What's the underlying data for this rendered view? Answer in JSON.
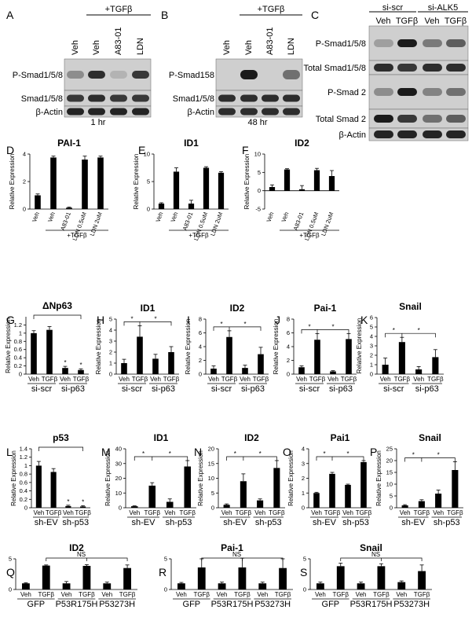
{
  "panels": {
    "A": {
      "label": "A",
      "treatment": "+TGFβ",
      "lanes": [
        "Veh",
        "Veh",
        "A83-01",
        "LDN"
      ],
      "rows": [
        "P-Smad1/5/8",
        "Smad1/5/8",
        "β-Actin"
      ],
      "time": "1 hr"
    },
    "B": {
      "label": "B",
      "treatment": "+TGFβ",
      "lanes": [
        "Veh",
        "Veh",
        "A83-01",
        "LDN"
      ],
      "rows": [
        "P-Smad158",
        "Smad1/5/8",
        "β-Actin"
      ],
      "time": "48 hr"
    },
    "C": {
      "label": "C",
      "groups": [
        "si-scr",
        "si-ALK5"
      ],
      "lanes": [
        "Veh",
        "TGFβ",
        "Veh",
        "TGFβ"
      ],
      "rows": [
        "P-Smad1/5/8",
        "Total Smad1/5/8",
        "P-Smad 2",
        "Total Smad 2",
        "β-Actin"
      ]
    }
  },
  "chart_data": [
    {
      "id": "D",
      "type": "bar",
      "title": "PAI-1",
      "ylabel": "Relative Expression",
      "categories": [
        "Veh",
        "Veh",
        "A83-01",
        "LDN 0.5uM",
        "LDN 2uM"
      ],
      "bracket_label": "+TGFβ",
      "ylim": [
        0,
        4
      ],
      "yticks": [
        0,
        2,
        4
      ],
      "values": [
        1.0,
        3.75,
        0.1,
        3.6,
        3.75
      ],
      "errors": [
        0.1,
        0.1,
        0.05,
        0.25,
        0.1
      ]
    },
    {
      "id": "E",
      "type": "bar",
      "title": "ID1",
      "ylabel": "Relative Expression",
      "categories": [
        "Veh",
        "Veh",
        "A83-01",
        "LDN 0.5uM",
        "LDN 2uM"
      ],
      "bracket_label": "+TGFβ",
      "ylim": [
        0,
        10
      ],
      "yticks": [
        0,
        5,
        10
      ],
      "values": [
        1.0,
        6.8,
        1.0,
        7.5,
        6.6
      ],
      "errors": [
        0.15,
        0.7,
        0.6,
        0.2,
        0.2
      ]
    },
    {
      "id": "F",
      "type": "bar",
      "title": "ID2",
      "ylabel": "Relative Expression",
      "categories": [
        "Veh",
        "Veh",
        "A83-01",
        "LDN 0.5uM",
        "LDN 2uM"
      ],
      "bracket_label": "+TGFβ",
      "ylim": [
        -5,
        10
      ],
      "yticks": [
        -5,
        0,
        5,
        10
      ],
      "values": [
        1.0,
        5.8,
        0.4,
        5.6,
        4.0
      ],
      "errors": [
        0.6,
        0.2,
        1.0,
        0.5,
        1.5
      ]
    },
    {
      "id": "G",
      "type": "bar",
      "title": "ΔNp63",
      "ylabel": "Relative Expression",
      "categories": [
        "Veh",
        "TGFβ",
        "Veh",
        "TGFβ"
      ],
      "groups": [
        "si-scr",
        "si-p63"
      ],
      "ylim": [
        0,
        1.4
      ],
      "yticks": [
        0,
        0.2,
        0.4,
        0.6,
        0.8,
        1,
        1.2
      ],
      "values": [
        1.0,
        1.08,
        0.15,
        0.1
      ],
      "errors": [
        0.06,
        0.08,
        0.04,
        0.03
      ],
      "stars": [
        "",
        "",
        "*",
        "*"
      ]
    },
    {
      "id": "H",
      "type": "bar",
      "title": "ID1",
      "ylabel": "Relative Expression",
      "categories": [
        "Veh",
        "TGFβ",
        "Veh",
        "TGFβ"
      ],
      "groups": [
        "si-scr",
        "si-p63"
      ],
      "ylim": [
        0,
        5
      ],
      "yticks": [
        0,
        1,
        2,
        3,
        4,
        5
      ],
      "values": [
        1.0,
        3.4,
        1.4,
        2.0
      ],
      "errors": [
        0.35,
        1.0,
        0.4,
        0.5
      ]
    },
    {
      "id": "I",
      "type": "bar",
      "title": "ID2",
      "ylabel": "Relative Expression",
      "categories": [
        "Veh",
        "TGFβ",
        "Veh",
        "TGFβ"
      ],
      "groups": [
        "si-scr",
        "si-p63"
      ],
      "ylim": [
        0,
        8
      ],
      "yticks": [
        0,
        2,
        4,
        6,
        8
      ],
      "values": [
        0.8,
        5.4,
        0.9,
        2.9
      ],
      "errors": [
        0.4,
        0.9,
        0.4,
        1.0
      ]
    },
    {
      "id": "J",
      "type": "bar",
      "title": "Pai-1",
      "ylabel": "Relative Expression",
      "categories": [
        "Veh",
        "TGFβ",
        "Veh",
        "TGFβ"
      ],
      "groups": [
        "si-scr",
        "si-p63"
      ],
      "ylim": [
        0,
        8
      ],
      "yticks": [
        0,
        2,
        4,
        6,
        8
      ],
      "values": [
        1.0,
        5.0,
        0.4,
        5.1
      ],
      "errors": [
        0.2,
        0.9,
        0.1,
        0.8
      ]
    },
    {
      "id": "K",
      "type": "bar",
      "title": "Snail",
      "ylabel": "Relative Expression",
      "categories": [
        "Veh",
        "TGFβ",
        "Veh",
        "TGFβ"
      ],
      "groups": [
        "si-scr",
        "si-p63"
      ],
      "ylim": [
        0,
        6
      ],
      "yticks": [
        0,
        1,
        2,
        3,
        4,
        5,
        6
      ],
      "values": [
        1.0,
        3.4,
        0.5,
        1.8
      ],
      "errors": [
        0.7,
        0.5,
        0.3,
        0.8
      ]
    },
    {
      "id": "L",
      "type": "bar",
      "title": "p53",
      "ylabel": "Relative Expression",
      "categories": [
        "Veh",
        "TGFβ",
        "Veh",
        "TGFβ"
      ],
      "groups": [
        "sh-EV",
        "sh-p53"
      ],
      "ylim": [
        0,
        1.4
      ],
      "yticks": [
        0,
        0.2,
        0.4,
        0.6,
        0.8,
        1,
        1.2,
        1.4
      ],
      "values": [
        1.0,
        0.85,
        0.04,
        0.03
      ],
      "errors": [
        0.1,
        0.08,
        0.02,
        0.02
      ],
      "stars": [
        "",
        "",
        "*",
        "*"
      ]
    },
    {
      "id": "M",
      "type": "bar",
      "title": "ID1",
      "ylabel": "Relative Expression",
      "categories": [
        "Veh",
        "TGFβ",
        "Veh",
        "TGFβ"
      ],
      "groups": [
        "sh-EV",
        "sh-p53"
      ],
      "ylim": [
        0,
        40
      ],
      "yticks": [
        0,
        10,
        20,
        30,
        40
      ],
      "values": [
        1.0,
        15.0,
        4.0,
        28.0
      ],
      "errors": [
        0.3,
        2.0,
        2.0,
        4.0
      ]
    },
    {
      "id": "N",
      "type": "bar",
      "title": "ID2",
      "ylabel": "Relative Expression",
      "categories": [
        "Veh",
        "TGFβ",
        "Veh",
        "TGFβ"
      ],
      "groups": [
        "sh-EV",
        "sh-p53"
      ],
      "ylim": [
        0,
        20
      ],
      "yticks": [
        0,
        5,
        10,
        15,
        20
      ],
      "values": [
        1.0,
        9.0,
        2.5,
        13.5
      ],
      "errors": [
        0.3,
        2.5,
        0.5,
        2.5
      ]
    },
    {
      "id": "O",
      "type": "bar",
      "title": "Pai1",
      "ylabel": "Relative Expression",
      "categories": [
        "Veh",
        "TGFβ",
        "Veh",
        "TGFβ"
      ],
      "groups": [
        "sh-EV",
        "sh-p53"
      ],
      "ylim": [
        0,
        4
      ],
      "yticks": [
        0,
        1,
        2,
        3,
        4
      ],
      "values": [
        1.0,
        2.3,
        1.55,
        3.1
      ],
      "errors": [
        0.05,
        0.1,
        0.05,
        0.1
      ]
    },
    {
      "id": "P",
      "type": "bar",
      "title": "Snail",
      "ylabel": "Relative Expression",
      "categories": [
        "Veh",
        "TGFβ",
        "Veh",
        "TGFβ"
      ],
      "groups": [
        "sh-EV",
        "sh-p53"
      ],
      "ylim": [
        0,
        25
      ],
      "yticks": [
        0,
        5,
        10,
        15,
        20,
        25
      ],
      "values": [
        1.0,
        2.8,
        6.0,
        16.0
      ],
      "errors": [
        0.3,
        0.6,
        1.5,
        3.5
      ]
    },
    {
      "id": "Q",
      "type": "bar",
      "title": "ID2",
      "ylabel": "",
      "categories": [
        "Veh",
        "TGFβ",
        "Veh",
        "TGFβ",
        "Veh",
        "TGFβ"
      ],
      "groups": [
        "GFP",
        "P53R175H",
        "P53273H"
      ],
      "ylim": [
        0,
        5
      ],
      "yticks": [
        0,
        5
      ],
      "values": [
        1.0,
        3.9,
        1.0,
        3.85,
        1.0,
        3.5
      ],
      "errors": [
        0.1,
        0.1,
        0.3,
        0.2,
        0.2,
        0.5
      ],
      "annotation": "NS"
    },
    {
      "id": "R",
      "type": "bar",
      "title": "Pai-1",
      "ylabel": "",
      "categories": [
        "Veh",
        "TGFβ",
        "Veh",
        "TGFβ",
        "Veh",
        "TGFβ"
      ],
      "groups": [
        "GFP",
        "P53R175H",
        "P53273H"
      ],
      "ylim": [
        0,
        5
      ],
      "yticks": [
        0,
        5
      ],
      "values": [
        1.0,
        3.6,
        1.0,
        3.6,
        1.0,
        3.5
      ],
      "errors": [
        0.15,
        1.4,
        0.2,
        1.5,
        0.2,
        1.5
      ],
      "annotation": "NS"
    },
    {
      "id": "S",
      "type": "bar",
      "title": "Snail",
      "ylabel": "",
      "categories": [
        "Veh",
        "TGFβ",
        "Veh",
        "TGFβ",
        "Veh",
        "TGFβ"
      ],
      "groups": [
        "GFP",
        "P53R175H",
        "P53273H"
      ],
      "ylim": [
        0,
        5
      ],
      "yticks": [
        0,
        5
      ],
      "values": [
        1.0,
        3.8,
        1.0,
        3.8,
        1.2,
        3.0
      ],
      "errors": [
        0.2,
        0.5,
        0.2,
        0.4,
        0.2,
        1.0
      ],
      "annotation": "NS"
    }
  ]
}
